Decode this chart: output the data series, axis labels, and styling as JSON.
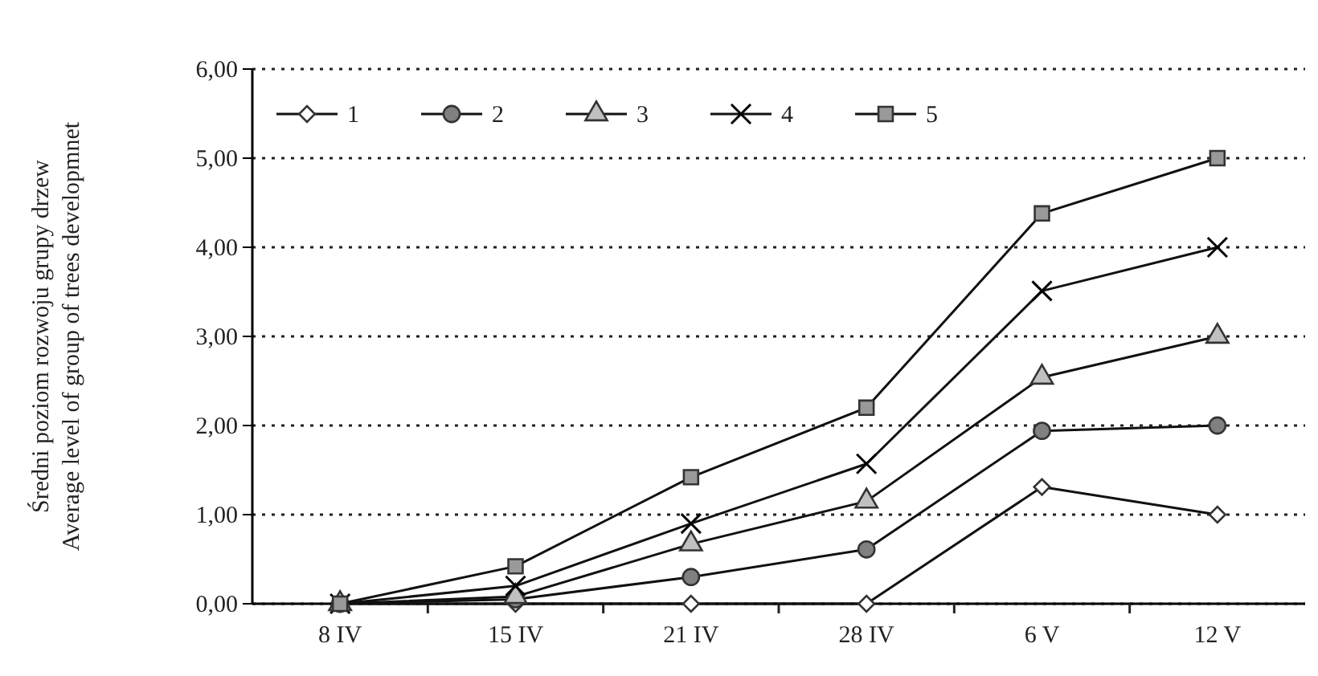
{
  "chart_data": {
    "type": "line",
    "ylabel": "Średni poziom rozwoju grupy drzew\nAverage level of group of trees developmnet",
    "categories": [
      "8 IV",
      "15 IV",
      "21 IV",
      "28 IV",
      "6 V",
      "12 V"
    ],
    "ylim": [
      0,
      6
    ],
    "yticks": [
      {
        "value": 0,
        "label": "0,00"
      },
      {
        "value": 1,
        "label": "1,00"
      },
      {
        "value": 2,
        "label": "2,00"
      },
      {
        "value": 3,
        "label": "3,00"
      },
      {
        "value": 4,
        "label": "4,00"
      },
      {
        "value": 5,
        "label": "5,00"
      },
      {
        "value": 6,
        "label": "6,00"
      }
    ],
    "grid": "y",
    "legend": "top left",
    "line_style": "solid",
    "series": [
      {
        "name": "1",
        "color": "#ffffff",
        "marker": "diamond",
        "values": [
          0,
          0,
          0,
          0,
          1.31,
          1.0
        ]
      },
      {
        "name": "2",
        "color": "#808080",
        "marker": "circle",
        "values": [
          0,
          0.05,
          0.3,
          0.61,
          1.94,
          2.0
        ]
      },
      {
        "name": "3",
        "color": "#c0c0c0",
        "marker": "triangle",
        "values": [
          0,
          0.08,
          0.67,
          1.15,
          2.54,
          3.0
        ]
      },
      {
        "name": "4",
        "color": "#000000",
        "marker": "cross",
        "values": [
          0,
          0.2,
          0.9,
          1.57,
          3.51,
          4.0
        ]
      },
      {
        "name": "5",
        "color": "#999999",
        "marker": "square",
        "values": [
          0,
          0.42,
          1.42,
          2.2,
          4.38,
          5.0
        ]
      }
    ]
  }
}
